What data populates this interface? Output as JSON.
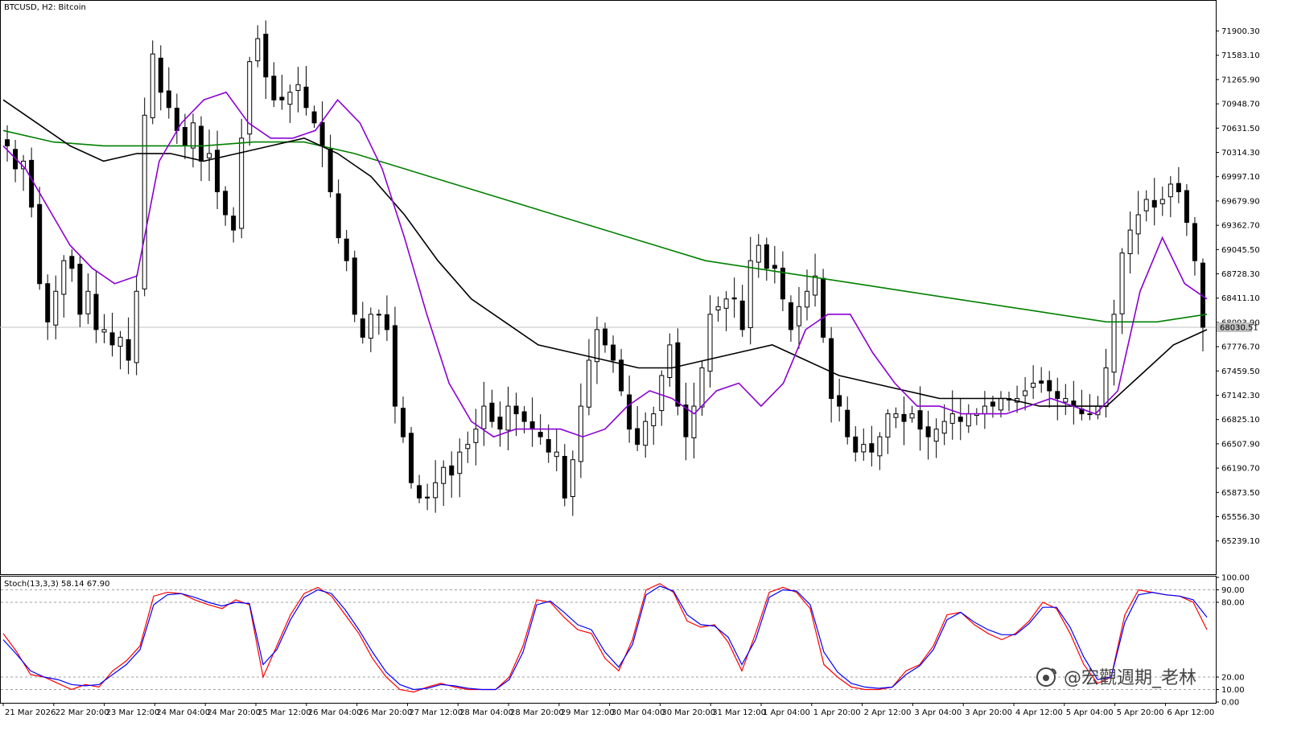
{
  "chart_title": "BTCUSD, H2:  Bitcoin",
  "last_price_label": "68030.51",
  "watermark_text": "@宏觀週期_老林",
  "watermark_icon": "weibo-icon",
  "colors": {
    "bull_body": "#ffffff",
    "bear_body": "#000000",
    "ma_fast": "#8b00d4",
    "ma_slow": "#000000",
    "ma_long": "#008000",
    "stoch_main": "#ff0000",
    "stoch_signal": "#0000ff",
    "last_price_line": "#c0c0c0"
  },
  "chart_data": [
    {
      "type": "candlestick",
      "symbol": "BTCUSD",
      "timeframe": "H2",
      "ylim": [
        64900,
        72200
      ],
      "yticks": [
        "71900.30",
        "71583.10",
        "71265.90",
        "70948.70",
        "70631.50",
        "70314.30",
        "69997.10",
        "69679.90",
        "69362.70",
        "69045.50",
        "68728.30",
        "68411.10",
        "68093.90",
        "67776.70",
        "67459.50",
        "67142.30",
        "66825.10",
        "66507.90",
        "66190.70",
        "65873.50",
        "65556.30",
        "65239.10"
      ],
      "xticks": [
        "21 Mar 2026",
        "22 Mar 20:00",
        "23 Mar 12:00",
        "24 Mar 04:00",
        "24 Mar 20:00",
        "25 Mar 12:00",
        "26 Mar 04:00",
        "26 Mar 20:00",
        "27 Mar 12:00",
        "28 Mar 04:00",
        "28 Mar 20:00",
        "29 Mar 12:00",
        "30 Mar 04:00",
        "30 Mar 20:00",
        "31 Mar 12:00",
        "1 Apr 04:00",
        "1 Apr 20:00",
        "2 Apr 12:00",
        "3 Apr 04:00",
        "3 Apr 20:00",
        "4 Apr 12:00",
        "5 Apr 04:00",
        "5 Apr 20:00",
        "6 Apr 12:00"
      ],
      "last_price": 68030.51,
      "close_path": [
        70400,
        70100,
        70200,
        69600,
        68600,
        68100,
        68500,
        68900,
        68800,
        68200,
        68500,
        68000,
        68000,
        67800,
        67900,
        67600,
        68500,
        70800,
        71600,
        71100,
        70900,
        70600,
        70400,
        70700,
        70200,
        70300,
        69800,
        69500,
        69300,
        70500,
        71500,
        71800,
        71300,
        71000,
        71000,
        71100,
        71200,
        70900,
        70700,
        70400,
        69800,
        69200,
        68900,
        68200,
        67900,
        68200,
        68200,
        68000,
        67000,
        66600,
        66000,
        65800,
        65800,
        66000,
        66200,
        66100,
        66400,
        66500,
        66700,
        67000,
        66800,
        66700,
        67000,
        66900,
        66800,
        66700,
        66600,
        66400,
        66400,
        65800,
        66300,
        67000,
        67600,
        68000,
        67800,
        67600,
        67200,
        66700,
        66500,
        66800,
        66900,
        67400,
        67800,
        67000,
        66600,
        67000,
        67500,
        68200,
        68300,
        68400,
        68400,
        68000,
        68900,
        69100,
        68800,
        68800,
        68400,
        68000,
        68300,
        68500,
        68700,
        67900,
        67100,
        67000,
        66600,
        66400,
        66500,
        66400,
        66600,
        66900,
        66900,
        66800,
        66900,
        66700,
        66600,
        66700,
        66800,
        66900,
        66800,
        66900,
        66900,
        67000,
        67000,
        67100,
        67100,
        67100,
        67200,
        67300,
        67300,
        67200,
        67100,
        67100,
        67000,
        66900,
        66900,
        67000,
        67500,
        68200,
        69000,
        69300,
        69500,
        69700,
        69600,
        69700,
        69900,
        69800,
        69400,
        68900,
        68030
      ],
      "ma_fast": {
        "label": "MA fast (purple)",
        "values": [
          70400,
          70100,
          69600,
          69100,
          68800,
          68600,
          68700,
          70200,
          70700,
          71000,
          71100,
          70700,
          70500,
          70500,
          70600,
          71000,
          70700,
          70100,
          69200,
          68200,
          67300,
          66800,
          66600,
          66700,
          66700,
          66700,
          66600,
          66700,
          67000,
          67200,
          67100,
          66900,
          67200,
          67300,
          67000,
          67300,
          68000,
          68200,
          68200,
          67700,
          67300,
          67000,
          67000,
          66900,
          66900,
          66900,
          67000,
          67100,
          67000,
          66900,
          67200,
          68500,
          69200,
          68600,
          68400
        ]
      },
      "ma_slow": {
        "label": "MA slow (black)",
        "values": [
          71000,
          70700,
          70400,
          70200,
          70300,
          70300,
          70200,
          70300,
          70400,
          70500,
          70300,
          70000,
          69500,
          68900,
          68400,
          68100,
          67800,
          67700,
          67600,
          67500,
          67500,
          67600,
          67700,
          67800,
          67600,
          67400,
          67300,
          67200,
          67100,
          67100,
          67100,
          67000,
          67000,
          67000,
          67400,
          67800,
          68000
        ]
      },
      "ma_long": {
        "label": "MA long (green)",
        "values": [
          70600,
          70450,
          70400,
          70400,
          70400,
          70450,
          70450,
          70300,
          70100,
          69900,
          69700,
          69500,
          69300,
          69100,
          68900,
          68800,
          68700,
          68600,
          68500,
          68400,
          68300,
          68200,
          68100,
          68100,
          68200
        ]
      }
    },
    {
      "type": "line",
      "indicator": "Stoch(13,3,3)",
      "label_text": "Stoch(13,3,3) 58.14 67.90",
      "main_value": 58.14,
      "signal_value": 67.9,
      "ylim": [
        0,
        100
      ],
      "yticks": [
        "100.00",
        "90.00",
        "80.00",
        "20.00",
        "10.00",
        "0.00"
      ],
      "levels": [
        90,
        80,
        20,
        10
      ],
      "main": [
        55,
        40,
        22,
        20,
        15,
        10,
        14,
        12,
        25,
        33,
        45,
        85,
        88,
        87,
        82,
        78,
        75,
        82,
        78,
        20,
        45,
        70,
        87,
        92,
        85,
        70,
        55,
        35,
        20,
        10,
        8,
        12,
        15,
        12,
        10,
        10,
        10,
        20,
        45,
        82,
        80,
        68,
        58,
        55,
        35,
        25,
        50,
        90,
        95,
        88,
        65,
        60,
        62,
        48,
        25,
        55,
        88,
        92,
        88,
        75,
        30,
        20,
        12,
        10,
        10,
        12,
        25,
        30,
        45,
        70,
        72,
        62,
        55,
        50,
        55,
        65,
        80,
        75,
        55,
        30,
        15,
        20,
        70,
        90,
        88,
        86,
        85,
        80,
        58
      ],
      "signal": [
        50,
        38,
        25,
        20,
        18,
        14,
        13,
        14,
        22,
        30,
        42,
        78,
        86,
        87,
        84,
        80,
        77,
        80,
        79,
        30,
        42,
        66,
        84,
        90,
        87,
        74,
        58,
        40,
        24,
        14,
        10,
        11,
        14,
        13,
        11,
        10,
        10,
        18,
        40,
        78,
        81,
        72,
        62,
        58,
        40,
        28,
        46,
        86,
        93,
        89,
        70,
        62,
        61,
        52,
        30,
        50,
        84,
        90,
        89,
        78,
        40,
        24,
        15,
        12,
        11,
        12,
        22,
        29,
        42,
        66,
        72,
        64,
        58,
        54,
        54,
        63,
        76,
        76,
        60,
        36,
        18,
        20,
        64,
        86,
        88,
        86,
        85,
        82,
        68
      ]
    }
  ]
}
